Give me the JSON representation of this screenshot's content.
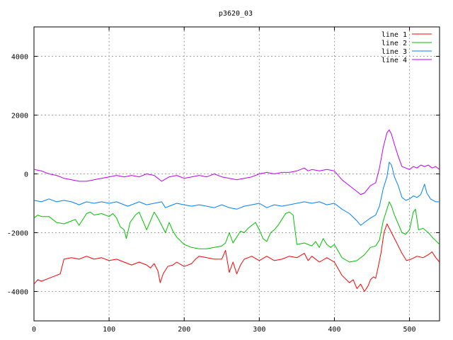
{
  "chart_data": {
    "type": "line",
    "title": "p3620_03",
    "xlabel": "",
    "ylabel": "",
    "xlim": [
      0,
      540
    ],
    "ylim": [
      -5000,
      5000
    ],
    "x_ticks": [
      0,
      100,
      200,
      300,
      400,
      500
    ],
    "x_tick_labels": [
      "0",
      "100",
      "200",
      "300",
      "400",
      "500"
    ],
    "y_ticks": [
      -4000,
      -2000,
      0,
      2000,
      4000
    ],
    "y_tick_labels": [
      "-4000",
      "-2000",
      "0",
      "2000",
      "4000"
    ],
    "grid": true,
    "legend_position": "top-right",
    "series": [
      {
        "name": "line 1",
        "color": "#ff0000",
        "points": [
          [
            0,
            -3750
          ],
          [
            5,
            -3600
          ],
          [
            10,
            -3650
          ],
          [
            20,
            -3550
          ],
          [
            30,
            -3450
          ],
          [
            35,
            -3400
          ],
          [
            40,
            -2900
          ],
          [
            50,
            -2850
          ],
          [
            60,
            -2900
          ],
          [
            70,
            -2800
          ],
          [
            80,
            -2900
          ],
          [
            90,
            -2850
          ],
          [
            100,
            -2950
          ],
          [
            110,
            -2900
          ],
          [
            120,
            -3000
          ],
          [
            125,
            -3050
          ],
          [
            130,
            -3100
          ],
          [
            140,
            -3000
          ],
          [
            150,
            -3100
          ],
          [
            155,
            -3200
          ],
          [
            160,
            -3050
          ],
          [
            165,
            -3300
          ],
          [
            168,
            -3700
          ],
          [
            172,
            -3400
          ],
          [
            178,
            -3150
          ],
          [
            185,
            -3100
          ],
          [
            190,
            -3000
          ],
          [
            200,
            -3150
          ],
          [
            210,
            -3050
          ],
          [
            215,
            -2900
          ],
          [
            220,
            -2800
          ],
          [
            230,
            -2850
          ],
          [
            240,
            -2900
          ],
          [
            250,
            -2900
          ],
          [
            255,
            -2600
          ],
          [
            260,
            -3350
          ],
          [
            265,
            -3000
          ],
          [
            270,
            -3400
          ],
          [
            275,
            -3100
          ],
          [
            280,
            -2900
          ],
          [
            290,
            -2800
          ],
          [
            300,
            -2950
          ],
          [
            310,
            -2800
          ],
          [
            320,
            -2950
          ],
          [
            330,
            -2900
          ],
          [
            340,
            -2800
          ],
          [
            350,
            -2850
          ],
          [
            360,
            -2700
          ],
          [
            365,
            -2950
          ],
          [
            370,
            -2800
          ],
          [
            380,
            -3000
          ],
          [
            390,
            -2850
          ],
          [
            400,
            -3000
          ],
          [
            410,
            -3450
          ],
          [
            420,
            -3700
          ],
          [
            425,
            -3600
          ],
          [
            430,
            -3900
          ],
          [
            435,
            -3750
          ],
          [
            440,
            -4000
          ],
          [
            445,
            -3800
          ],
          [
            448,
            -3600
          ],
          [
            452,
            -3500
          ],
          [
            455,
            -3550
          ],
          [
            458,
            -3200
          ],
          [
            462,
            -2700
          ],
          [
            466,
            -2000
          ],
          [
            470,
            -1700
          ],
          [
            474,
            -1900
          ],
          [
            478,
            -2100
          ],
          [
            482,
            -2300
          ],
          [
            486,
            -2500
          ],
          [
            490,
            -2700
          ],
          [
            496,
            -2950
          ],
          [
            502,
            -2900
          ],
          [
            510,
            -2800
          ],
          [
            518,
            -2850
          ],
          [
            525,
            -2750
          ],
          [
            530,
            -2650
          ],
          [
            535,
            -2850
          ],
          [
            540,
            -3000
          ]
        ]
      },
      {
        "name": "line 2",
        "color": "#00c000",
        "points": [
          [
            0,
            -1500
          ],
          [
            5,
            -1400
          ],
          [
            10,
            -1450
          ],
          [
            20,
            -1450
          ],
          [
            30,
            -1650
          ],
          [
            40,
            -1700
          ],
          [
            50,
            -1600
          ],
          [
            55,
            -1550
          ],
          [
            60,
            -1750
          ],
          [
            70,
            -1350
          ],
          [
            75,
            -1300
          ],
          [
            80,
            -1400
          ],
          [
            90,
            -1350
          ],
          [
            100,
            -1450
          ],
          [
            105,
            -1350
          ],
          [
            110,
            -1500
          ],
          [
            115,
            -1800
          ],
          [
            120,
            -1900
          ],
          [
            123,
            -2200
          ],
          [
            128,
            -1650
          ],
          [
            135,
            -1400
          ],
          [
            140,
            -1300
          ],
          [
            145,
            -1600
          ],
          [
            150,
            -1900
          ],
          [
            155,
            -1600
          ],
          [
            160,
            -1300
          ],
          [
            165,
            -1500
          ],
          [
            170,
            -1750
          ],
          [
            175,
            -2000
          ],
          [
            180,
            -1650
          ],
          [
            185,
            -1950
          ],
          [
            190,
            -2150
          ],
          [
            200,
            -2400
          ],
          [
            210,
            -2500
          ],
          [
            220,
            -2550
          ],
          [
            230,
            -2550
          ],
          [
            240,
            -2500
          ],
          [
            250,
            -2450
          ],
          [
            255,
            -2350
          ],
          [
            260,
            -2000
          ],
          [
            265,
            -2350
          ],
          [
            270,
            -2150
          ],
          [
            275,
            -1950
          ],
          [
            280,
            -2000
          ],
          [
            285,
            -1850
          ],
          [
            290,
            -1750
          ],
          [
            295,
            -1650
          ],
          [
            300,
            -1900
          ],
          [
            305,
            -2200
          ],
          [
            310,
            -2300
          ],
          [
            315,
            -2000
          ],
          [
            320,
            -1900
          ],
          [
            325,
            -1750
          ],
          [
            330,
            -1550
          ],
          [
            335,
            -1350
          ],
          [
            340,
            -1300
          ],
          [
            345,
            -1400
          ],
          [
            350,
            -2400
          ],
          [
            360,
            -2350
          ],
          [
            370,
            -2450
          ],
          [
            375,
            -2300
          ],
          [
            380,
            -2500
          ],
          [
            385,
            -2200
          ],
          [
            390,
            -2400
          ],
          [
            395,
            -2500
          ],
          [
            400,
            -2400
          ],
          [
            410,
            -2850
          ],
          [
            420,
            -3000
          ],
          [
            430,
            -2950
          ],
          [
            440,
            -2750
          ],
          [
            448,
            -2500
          ],
          [
            455,
            -2450
          ],
          [
            460,
            -2250
          ],
          [
            465,
            -1600
          ],
          [
            470,
            -1200
          ],
          [
            473,
            -950
          ],
          [
            476,
            -1100
          ],
          [
            480,
            -1400
          ],
          [
            485,
            -1700
          ],
          [
            490,
            -2000
          ],
          [
            495,
            -2050
          ],
          [
            500,
            -1900
          ],
          [
            505,
            -1300
          ],
          [
            508,
            -1200
          ],
          [
            512,
            -1900
          ],
          [
            518,
            -1850
          ],
          [
            525,
            -2000
          ],
          [
            532,
            -2200
          ],
          [
            538,
            -2350
          ],
          [
            540,
            -2400
          ]
        ]
      },
      {
        "name": "line 3",
        "color": "#0080ff",
        "points": [
          [
            0,
            -900
          ],
          [
            10,
            -950
          ],
          [
            20,
            -850
          ],
          [
            30,
            -950
          ],
          [
            40,
            -900
          ],
          [
            50,
            -950
          ],
          [
            60,
            -1050
          ],
          [
            70,
            -950
          ],
          [
            80,
            -1000
          ],
          [
            90,
            -950
          ],
          [
            100,
            -1000
          ],
          [
            110,
            -950
          ],
          [
            120,
            -1050
          ],
          [
            125,
            -1100
          ],
          [
            130,
            -1050
          ],
          [
            140,
            -950
          ],
          [
            150,
            -1050
          ],
          [
            160,
            -1000
          ],
          [
            170,
            -950
          ],
          [
            175,
            -1150
          ],
          [
            180,
            -1100
          ],
          [
            190,
            -1000
          ],
          [
            200,
            -1050
          ],
          [
            210,
            -1100
          ],
          [
            220,
            -1050
          ],
          [
            230,
            -1100
          ],
          [
            240,
            -1150
          ],
          [
            250,
            -1050
          ],
          [
            260,
            -1150
          ],
          [
            270,
            -1200
          ],
          [
            280,
            -1100
          ],
          [
            290,
            -1050
          ],
          [
            300,
            -1000
          ],
          [
            310,
            -1150
          ],
          [
            320,
            -1050
          ],
          [
            330,
            -1100
          ],
          [
            340,
            -1050
          ],
          [
            350,
            -1000
          ],
          [
            360,
            -950
          ],
          [
            370,
            -1000
          ],
          [
            380,
            -950
          ],
          [
            390,
            -1050
          ],
          [
            400,
            -1000
          ],
          [
            410,
            -1200
          ],
          [
            420,
            -1350
          ],
          [
            430,
            -1600
          ],
          [
            435,
            -1750
          ],
          [
            440,
            -1650
          ],
          [
            448,
            -1500
          ],
          [
            455,
            -1400
          ],
          [
            460,
            -1100
          ],
          [
            465,
            -500
          ],
          [
            470,
            -100
          ],
          [
            473,
            400
          ],
          [
            476,
            300
          ],
          [
            480,
            -100
          ],
          [
            485,
            -400
          ],
          [
            490,
            -800
          ],
          [
            495,
            -900
          ],
          [
            500,
            -850
          ],
          [
            505,
            -750
          ],
          [
            510,
            -800
          ],
          [
            515,
            -700
          ],
          [
            520,
            -350
          ],
          [
            523,
            -650
          ],
          [
            528,
            -850
          ],
          [
            535,
            -950
          ],
          [
            540,
            -950
          ]
        ]
      },
      {
        "name": "line 4",
        "color": "#c000ff",
        "points": [
          [
            0,
            150
          ],
          [
            10,
            100
          ],
          [
            20,
            0
          ],
          [
            30,
            -50
          ],
          [
            40,
            -150
          ],
          [
            50,
            -200
          ],
          [
            60,
            -250
          ],
          [
            70,
            -250
          ],
          [
            80,
            -200
          ],
          [
            90,
            -150
          ],
          [
            100,
            -100
          ],
          [
            110,
            -50
          ],
          [
            120,
            -100
          ],
          [
            130,
            -50
          ],
          [
            140,
            -100
          ],
          [
            150,
            0
          ],
          [
            160,
            -50
          ],
          [
            165,
            -150
          ],
          [
            170,
            -250
          ],
          [
            180,
            -100
          ],
          [
            190,
            -50
          ],
          [
            200,
            -150
          ],
          [
            210,
            -100
          ],
          [
            220,
            -50
          ],
          [
            230,
            -100
          ],
          [
            240,
            0
          ],
          [
            250,
            -100
          ],
          [
            260,
            -150
          ],
          [
            270,
            -200
          ],
          [
            280,
            -150
          ],
          [
            290,
            -100
          ],
          [
            300,
            0
          ],
          [
            310,
            50
          ],
          [
            320,
            0
          ],
          [
            330,
            50
          ],
          [
            340,
            50
          ],
          [
            350,
            100
          ],
          [
            360,
            200
          ],
          [
            365,
            100
          ],
          [
            370,
            150
          ],
          [
            380,
            100
          ],
          [
            390,
            150
          ],
          [
            400,
            100
          ],
          [
            410,
            -200
          ],
          [
            420,
            -400
          ],
          [
            430,
            -600
          ],
          [
            435,
            -700
          ],
          [
            440,
            -650
          ],
          [
            448,
            -400
          ],
          [
            455,
            -300
          ],
          [
            460,
            200
          ],
          [
            465,
            900
          ],
          [
            470,
            1400
          ],
          [
            473,
            1500
          ],
          [
            476,
            1350
          ],
          [
            480,
            1000
          ],
          [
            485,
            600
          ],
          [
            490,
            250
          ],
          [
            495,
            200
          ],
          [
            500,
            150
          ],
          [
            505,
            250
          ],
          [
            510,
            200
          ],
          [
            515,
            300
          ],
          [
            520,
            250
          ],
          [
            525,
            300
          ],
          [
            530,
            200
          ],
          [
            535,
            250
          ],
          [
            540,
            150
          ]
        ]
      }
    ]
  }
}
